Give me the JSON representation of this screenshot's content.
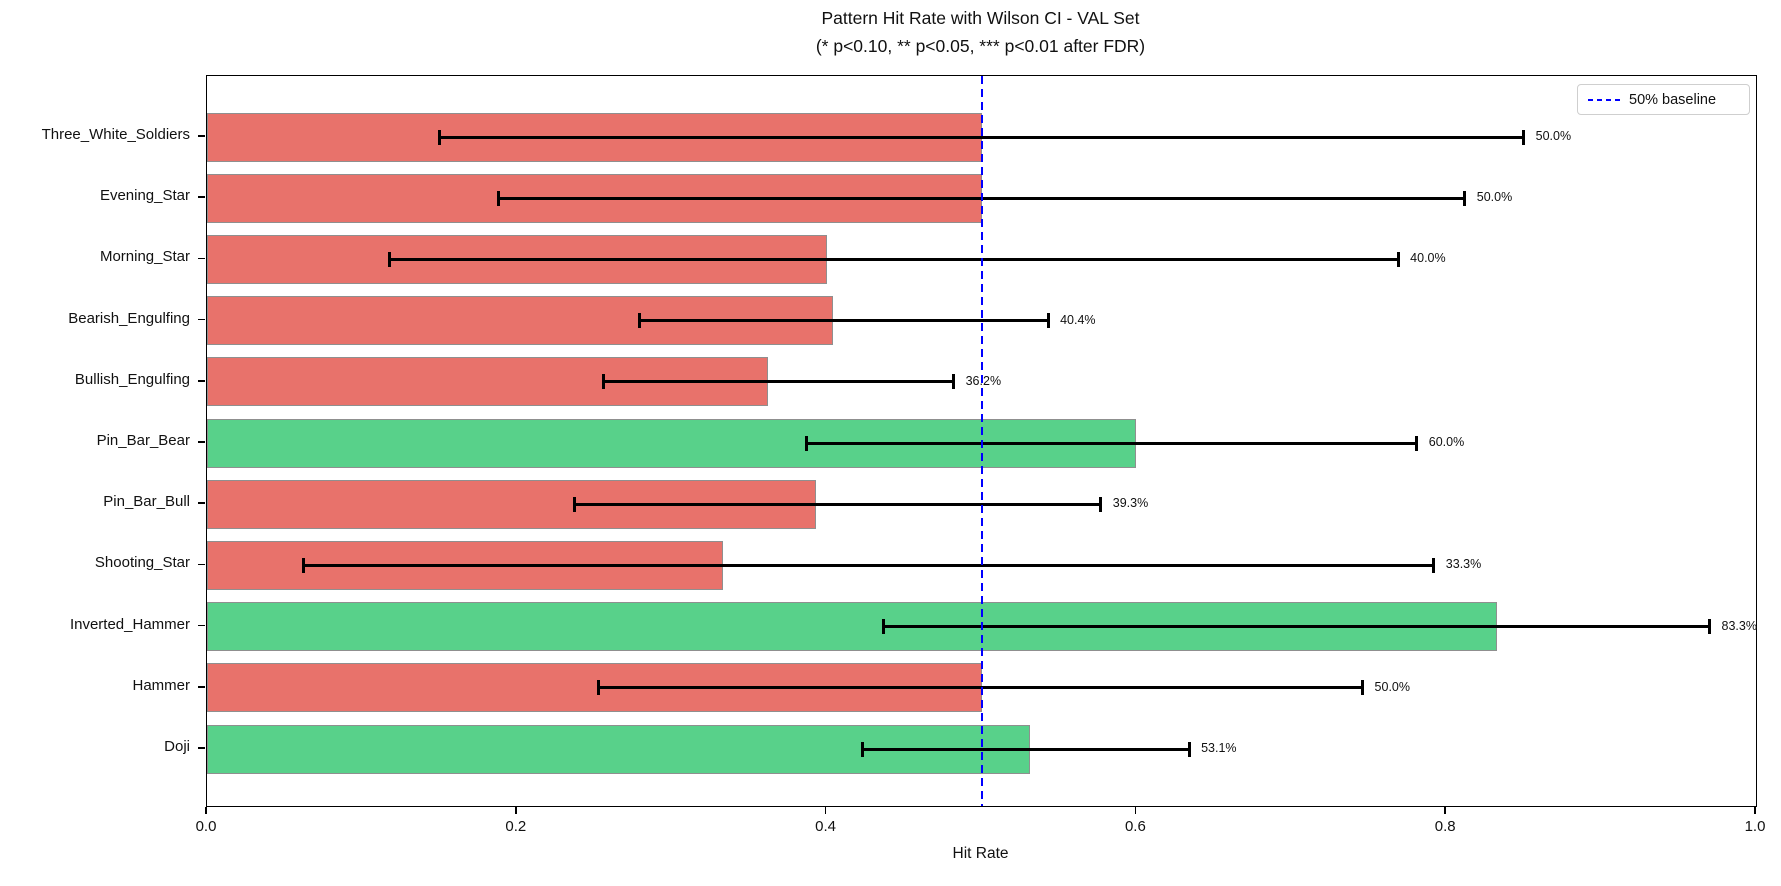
{
  "figure": {
    "title_line1": "Pattern Hit Rate with Wilson CI - VAL Set",
    "title_line2": "(* p<0.10, ** p<0.05, *** p<0.01 after FDR)"
  },
  "legend": {
    "baseline_label": "50% baseline",
    "baseline_color": "#0000ff"
  },
  "axes": {
    "xlabel": "Hit Rate",
    "x_ticks": [
      "0.0",
      "0.2",
      "0.4",
      "0.6",
      "0.8",
      "1.0"
    ],
    "x_tick_values": [
      0.0,
      0.2,
      0.4,
      0.6,
      0.8,
      1.0
    ]
  },
  "colors": {
    "bar_above_baseline": "#58d18a",
    "bar_below_baseline": "#e8726b",
    "bar_edge": "#8f8f8f",
    "error_bar": "#000000",
    "baseline": "#0000ff",
    "text": "#111111"
  },
  "chart_data": {
    "type": "bar",
    "orientation": "horizontal",
    "title": "Pattern Hit Rate with Wilson CI - VAL Set",
    "subtitle": "(* p<0.10, ** p<0.05, *** p<0.01 after FDR)",
    "xlabel": "Hit Rate",
    "ylabel": "",
    "xlim": [
      0.0,
      1.0
    ],
    "baseline_value": 0.5,
    "legend_entries": [
      "50% baseline"
    ],
    "legend_position": "upper right",
    "grid": false,
    "categories_top_to_bottom": [
      "Three_White_Soldiers",
      "Evening_Star",
      "Morning_Star",
      "Bearish_Engulfing",
      "Bullish_Engulfing",
      "Pin_Bar_Bear",
      "Pin_Bar_Bull",
      "Shooting_Star",
      "Inverted_Hammer",
      "Hammer",
      "Doji"
    ],
    "values": [
      0.5,
      0.5,
      0.4,
      0.404,
      0.362,
      0.6,
      0.393,
      0.333,
      0.833,
      0.5,
      0.531
    ],
    "value_labels": [
      "50.0%",
      "50.0%",
      "40.0%",
      "40.4%",
      "36.2%",
      "60.0%",
      "39.3%",
      "33.3%",
      "83.3%",
      "50.0%",
      "53.1%"
    ],
    "ci_low": [
      0.15,
      0.188,
      0.118,
      0.279,
      0.256,
      0.387,
      0.237,
      0.062,
      0.437,
      0.253,
      0.423
    ],
    "ci_high": [
      0.85,
      0.812,
      0.769,
      0.543,
      0.482,
      0.781,
      0.577,
      0.792,
      0.97,
      0.746,
      0.634
    ],
    "bar_colors": [
      "#e8726b",
      "#e8726b",
      "#e8726b",
      "#e8726b",
      "#e8726b",
      "#58d18a",
      "#e8726b",
      "#e8726b",
      "#58d18a",
      "#e8726b",
      "#58d18a"
    ]
  }
}
